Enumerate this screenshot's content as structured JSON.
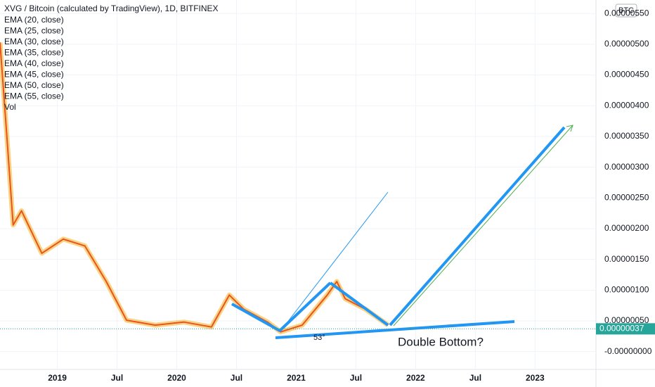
{
  "chart_data": {
    "type": "line",
    "title": "XVG / Bitcoin (calculated by TradingView), 1D, BITFINEX",
    "legend": [
      "EMA (20, close)",
      "EMA (25, close)",
      "EMA (30, close)",
      "EMA (35, close)",
      "EMA (40, close)",
      "EMA (45, close)",
      "EMA (50, close)",
      "EMA (55, close)",
      "Vol"
    ],
    "currency": "BTC",
    "annotations": [
      "Double Bottom?",
      "53°"
    ],
    "x": [
      2018.52,
      2018.58,
      2018.63,
      2018.7,
      2018.87,
      2019.05,
      2019.23,
      2019.41,
      2019.58,
      2019.82,
      2020.06,
      2020.29,
      2020.44,
      2020.56,
      2020.76,
      2020.87,
      2021.05,
      2021.26,
      2021.34,
      2021.41,
      2021.58,
      2021.77
    ],
    "values": [
      5.03e-06,
      3.43e-06,
      2.06e-06,
      2.29e-06,
      1.6e-06,
      1.83e-06,
      1.72e-06,
      1.14e-06,
      5.1e-07,
      4.3e-07,
      4.8e-07,
      4e-07,
      9.2e-07,
      6.9e-07,
      4.8e-07,
      3.2e-07,
      4.3e-07,
      9.2e-07,
      1.14e-06,
      8.6e-07,
      6.9e-07,
      4.3e-07
    ],
    "color": "#e8541f",
    "last_value": 3.7e-07,
    "last_value_label": "0.00000037",
    "xlim": [
      2018.52,
      2023.51
    ],
    "ylim": [
      -2.9e-07,
      5.72e-06
    ],
    "xticks": [
      {
        "value": 2019,
        "label": "2019"
      },
      {
        "value": 2019.5,
        "label": "Jul"
      },
      {
        "value": 2020,
        "label": "2020"
      },
      {
        "value": 2020.5,
        "label": "Jul"
      },
      {
        "value": 2021,
        "label": "2021"
      },
      {
        "value": 2021.5,
        "label": "Jul"
      },
      {
        "value": 2022,
        "label": "2022"
      },
      {
        "value": 2022.5,
        "label": "Jul"
      },
      {
        "value": 2023,
        "label": "2023"
      }
    ],
    "yticks": [
      {
        "value": 0,
        "label": "-0.00000000"
      },
      {
        "value": 5e-07,
        "label": "0.00000050"
      },
      {
        "value": 1e-06,
        "label": "0.00000100"
      },
      {
        "value": 1.5e-06,
        "label": "0.00000150"
      },
      {
        "value": 2e-06,
        "label": "0.00000200"
      },
      {
        "value": 2.5e-06,
        "label": "0.00000250"
      },
      {
        "value": 3e-06,
        "label": "0.00000300"
      },
      {
        "value": 3.5e-06,
        "label": "0.00000350"
      },
      {
        "value": 4e-06,
        "label": "0.00000400"
      },
      {
        "value": 4.5e-06,
        "label": "0.00000450"
      },
      {
        "value": 5e-06,
        "label": "0.00000500"
      },
      {
        "value": 5.5e-06,
        "label": "0.00000550"
      }
    ],
    "grid": true
  }
}
